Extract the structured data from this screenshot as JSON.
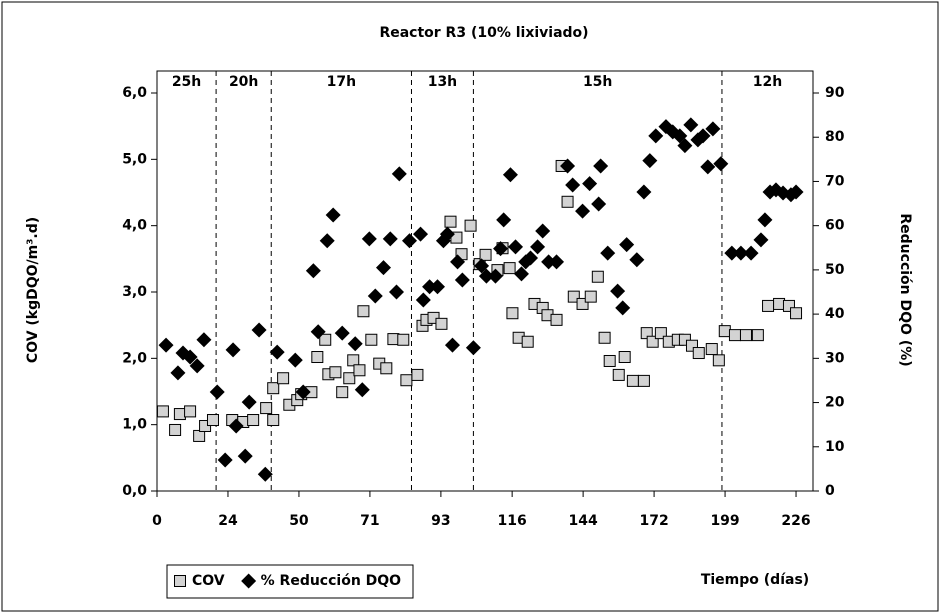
{
  "chart_data": {
    "type": "scatter",
    "title": "Reactor R3 (10% lixiviado)",
    "x_label": "Tiempo (días)",
    "y_label": "COV (kgDQO/m³.d)",
    "y2_label": "Reducción DQO (%)",
    "xlim": [
      0,
      232
    ],
    "xticks": [
      0,
      {
        "value": 25.1,
        "label": "24"
      },
      {
        "value": 50.2,
        "label": "50"
      },
      {
        "value": 75.3,
        "label": "71"
      },
      {
        "value": 100.4,
        "label": "93"
      },
      {
        "value": 125.6,
        "label": "116"
      },
      {
        "value": 150.7,
        "label": "144"
      },
      {
        "value": 175.8,
        "label": "172"
      },
      {
        "value": 200.9,
        "label": "199"
      },
      226
    ],
    "ylim": [
      0,
      6
    ],
    "yticks": [
      {
        "value": 0,
        "label": "0,0"
      },
      {
        "value": 1,
        "label": "1,0"
      },
      {
        "value": 2,
        "label": "2,0"
      },
      {
        "value": 3,
        "label": "3,0"
      },
      {
        "value": 4,
        "label": "4,0"
      },
      {
        "value": 5,
        "label": "5,0"
      },
      {
        "value": 6,
        "label": "6,0"
      }
    ],
    "y2lim": [
      0,
      90
    ],
    "y2ticks": [
      0,
      10,
      20,
      30,
      40,
      50,
      60,
      70,
      80,
      90
    ],
    "dividers": [
      20.9,
      40.4,
      90,
      111.9,
      199.8
    ],
    "phase_labels": [
      "25h",
      "20h",
      "17h",
      "13h",
      "15h",
      "12h"
    ],
    "series": [
      {
        "name": "COV",
        "color": "#d3d3d3",
        "marker": "square",
        "axis": "y",
        "x": [
          2.1,
          6.4,
          8.1,
          11.7,
          14.9,
          17,
          19.8,
          26.6,
          30.5,
          34,
          38.6,
          41.1,
          41.1,
          44.6,
          46.8,
          49.6,
          51,
          54.6,
          56.7,
          59.5,
          60.6,
          63.1,
          65.5,
          68,
          69.4,
          71.6,
          73,
          75.8,
          78.6,
          81.1,
          83.6,
          87.1,
          88.2,
          92.1,
          93.9,
          95.3,
          97.8,
          100.6,
          103.8,
          105.9,
          107.7,
          110.9,
          114.1,
          116.2,
          120.4,
          122.2,
          124.7,
          125.7,
          127.9,
          131.1,
          133.5,
          136.4,
          138.1,
          141.3,
          143.1,
          145.2,
          147.4,
          150.5,
          153.4,
          155.9,
          158.3,
          160.1,
          163.3,
          165.4,
          168.3,
          172.2,
          173.2,
          175.3,
          178.2,
          181,
          184.2,
          186.7,
          189.2,
          191.6,
          196.2,
          198.7,
          200.8,
          204.4,
          208.3,
          212.5,
          216.1,
          220,
          223.5,
          226
        ],
        "values": [
          1.2,
          0.92,
          1.16,
          1.2,
          0.83,
          0.98,
          1.07,
          1.07,
          1.04,
          1.07,
          1.25,
          1.07,
          1.55,
          1.7,
          1.3,
          1.37,
          1.46,
          1.49,
          2.02,
          2.28,
          1.76,
          1.79,
          1.49,
          1.7,
          1.97,
          1.82,
          2.71,
          2.28,
          1.92,
          1.85,
          2.29,
          2.28,
          1.67,
          1.75,
          2.49,
          2.58,
          2.61,
          2.52,
          4.06,
          3.82,
          3.57,
          4.0,
          3.42,
          3.56,
          3.33,
          3.66,
          3.36,
          2.68,
          2.31,
          2.25,
          2.82,
          2.76,
          2.65,
          2.58,
          4.9,
          4.36,
          2.93,
          2.82,
          2.93,
          3.23,
          2.31,
          1.96,
          1.75,
          2.02,
          1.66,
          1.66,
          2.38,
          2.25,
          2.38,
          2.25,
          2.28,
          2.28,
          2.19,
          2.08,
          2.14,
          1.97,
          2.41,
          2.35,
          2.35,
          2.35,
          2.79,
          2.82,
          2.79,
          2.68
        ]
      },
      {
        "name": "% Reducción DQO",
        "color": "#000000",
        "marker": "diamond",
        "axis": "y2",
        "x": [
          3.2,
          7.4,
          9.2,
          11.7,
          14.2,
          16.6,
          21.3,
          24.1,
          26.9,
          28,
          31.2,
          32.6,
          36.1,
          38.3,
          42.5,
          48.9,
          51.7,
          55.3,
          57,
          60.2,
          62.3,
          65.5,
          70.1,
          72.6,
          75.1,
          77.2,
          80.1,
          82.5,
          84.7,
          85.7,
          89.3,
          93.2,
          94.2,
          96.4,
          99.2,
          101.3,
          102.7,
          104.5,
          106.3,
          108,
          111.9,
          114.8,
          116.5,
          119.7,
          121.5,
          122.6,
          125,
          126.8,
          128.9,
          130.4,
          132.1,
          134.6,
          136.4,
          138.5,
          141.3,
          145.2,
          147,
          150.5,
          153,
          156.2,
          156.9,
          159.4,
          162.9,
          164.7,
          166.1,
          169.7,
          172.2,
          174.3,
          176.4,
          180,
          182.4,
          184.9,
          186.7,
          188.8,
          191.3,
          193.1,
          194.8,
          196.6,
          199.4,
          203.3,
          206.5,
          210.1,
          213.6,
          215,
          216.8,
          218.9,
          221.4,
          224.2,
          226
        ],
        "values": [
          33,
          26.7,
          31.2,
          30.3,
          28.3,
          34.2,
          22.4,
          7,
          31.9,
          14.7,
          7.9,
          20.1,
          36.4,
          3.8,
          31.4,
          29.6,
          22.4,
          49.8,
          36,
          56.6,
          62.4,
          35.7,
          33.3,
          22.9,
          57,
          44.1,
          50.5,
          57,
          45,
          71.7,
          56.6,
          58.1,
          43.2,
          46.2,
          46.2,
          56.6,
          58.1,
          33,
          51.8,
          47.7,
          32.4,
          50.9,
          48.6,
          48.6,
          54.8,
          61.3,
          71.5,
          55.2,
          49.1,
          51.8,
          52.7,
          55.2,
          58.8,
          51.8,
          51.8,
          73.5,
          69.2,
          63.3,
          69.5,
          64.9,
          73.5,
          53.8,
          45.2,
          41.4,
          55.7,
          52.3,
          67.6,
          74.7,
          80.3,
          82.4,
          81.2,
          80.3,
          78.1,
          82.8,
          79.4,
          80.3,
          73.3,
          81.9,
          74,
          53.8,
          53.8,
          53.8,
          56.8,
          61.3,
          67.6,
          68.1,
          67.4,
          67,
          67.6
        ]
      }
    ]
  }
}
